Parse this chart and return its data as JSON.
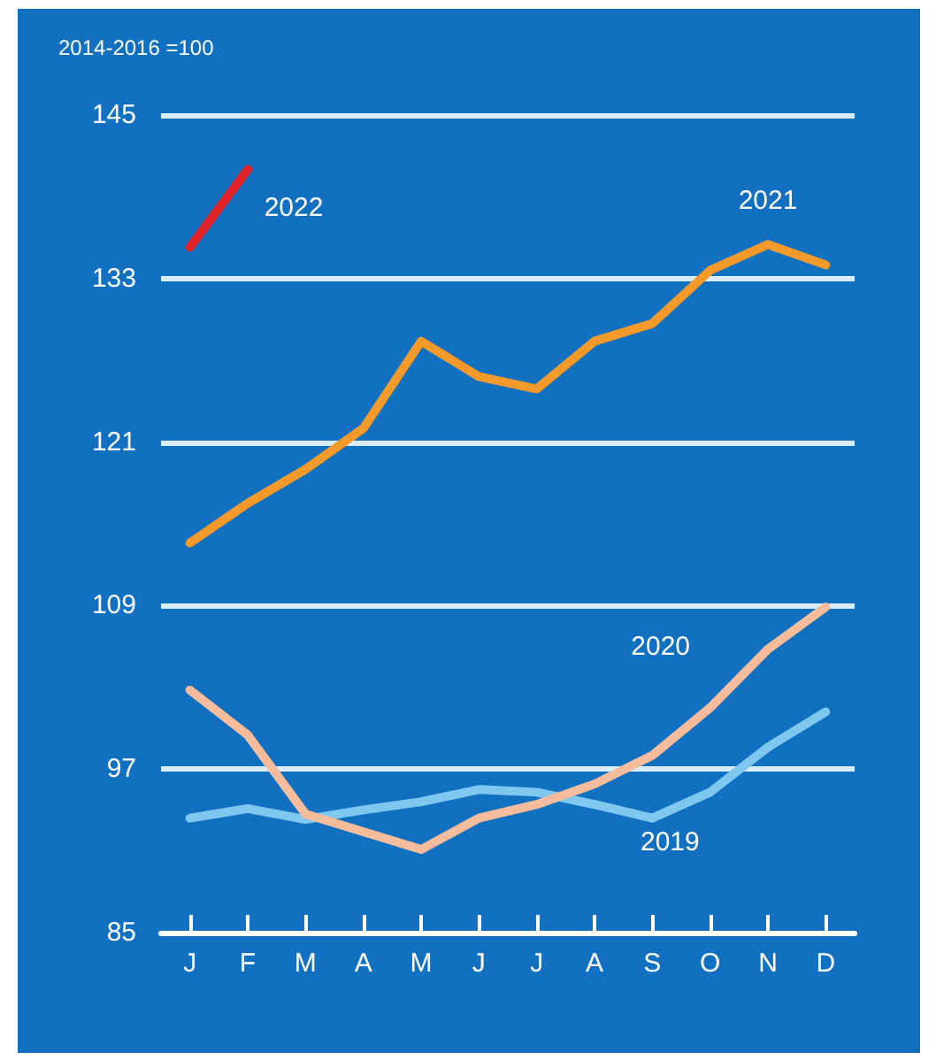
{
  "chart_data": {
    "type": "line",
    "ylabel": "2014-2016 =100",
    "categories": [
      "J",
      "F",
      "M",
      "A",
      "M",
      "J",
      "J",
      "A",
      "S",
      "O",
      "N",
      "D"
    ],
    "series": [
      {
        "name": "2019",
        "color": "#7ec8f0",
        "values": [
          93.4,
          94.1,
          93.3,
          94,
          94.6,
          95.5,
          95.3,
          94.4,
          93.4,
          95.3,
          98.6,
          101.2
        ]
      },
      {
        "name": "2020",
        "color": "#f6bc9c",
        "values": [
          102.8,
          99.5,
          93.7,
          92.4,
          91.1,
          93.4,
          94.4,
          95.9,
          98,
          101.5,
          105.8,
          108.9
        ]
      },
      {
        "name": "2021",
        "color": "#f39a2b",
        "values": [
          113.6,
          116.5,
          119,
          122,
          128.4,
          125.8,
          124.9,
          128.4,
          129.7,
          133.6,
          135.5,
          134
        ]
      },
      {
        "name": "2022",
        "color": "#e3242b",
        "values": [
          135.3,
          141,
          null,
          null,
          null,
          null,
          null,
          null,
          null,
          null,
          null,
          null
        ]
      }
    ],
    "ylim": [
      85,
      145
    ],
    "yticks": [
      85,
      97,
      109,
      121,
      133,
      145
    ],
    "grid": "y",
    "legend": false
  }
}
